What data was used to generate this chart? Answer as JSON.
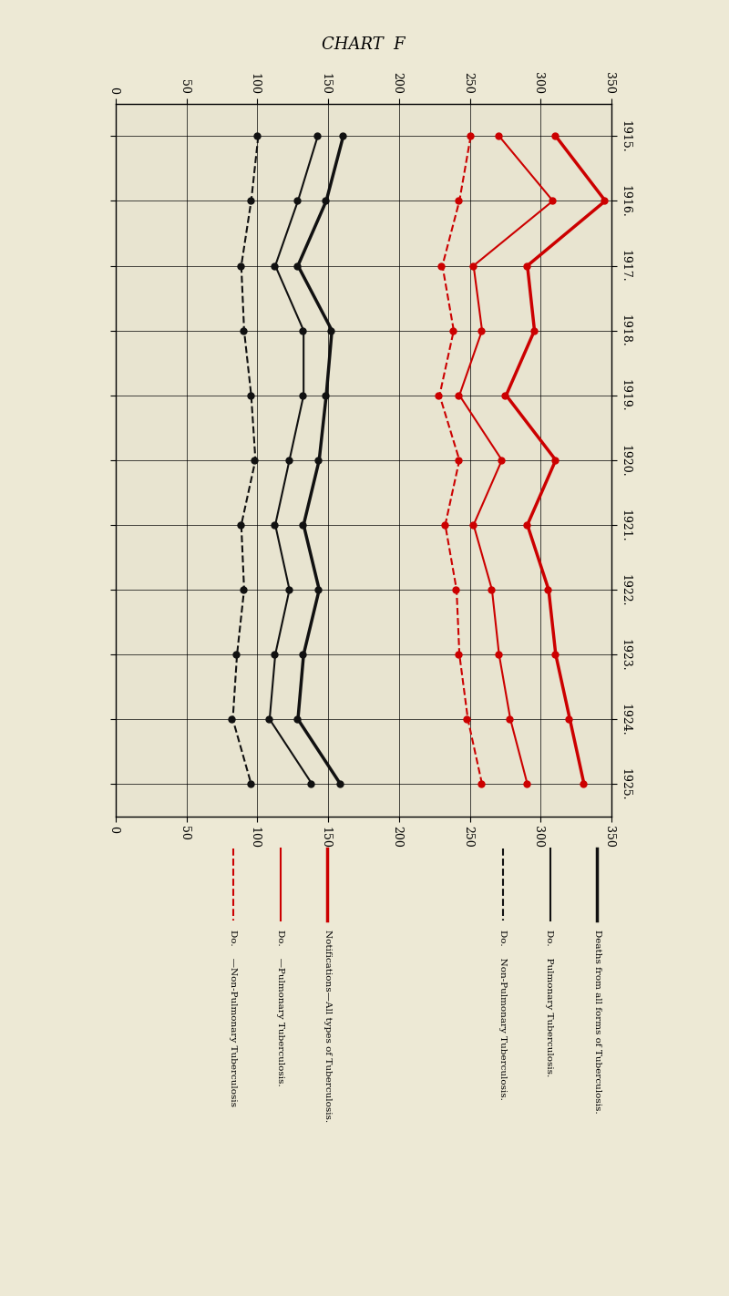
{
  "years": [
    1915,
    1916,
    1917,
    1918,
    1919,
    1920,
    1921,
    1922,
    1923,
    1924,
    1925
  ],
  "notif_all": [
    310,
    345,
    290,
    295,
    275,
    310,
    290,
    305,
    310,
    320,
    330
  ],
  "notif_pulm": [
    270,
    308,
    252,
    258,
    242,
    272,
    252,
    265,
    270,
    278,
    290
  ],
  "notif_nonpulm": [
    250,
    242,
    230,
    238,
    228,
    242,
    232,
    240,
    242,
    248,
    258
  ],
  "death_all": [
    160,
    148,
    128,
    152,
    148,
    143,
    132,
    143,
    132,
    128,
    158
  ],
  "death_pulm": [
    142,
    128,
    112,
    132,
    132,
    122,
    112,
    122,
    112,
    108,
    138
  ],
  "death_nonpulm": [
    100,
    95,
    88,
    90,
    95,
    98,
    88,
    90,
    85,
    82,
    95
  ],
  "bg_color": "#e8e4d0",
  "paper_color": "#ede9d5",
  "red": "#cc0000",
  "black": "#111111",
  "xlim_left": 350,
  "xlim_right": 0,
  "yticks": [
    0,
    50,
    100,
    150,
    200,
    250,
    300,
    350
  ],
  "xticks": [
    1915,
    1916,
    1917,
    1918,
    1919,
    1920,
    1921,
    1922,
    1923,
    1924,
    1925
  ],
  "chart_label": "CHART  F",
  "legend_notif": [
    "Notifications—All types of Tuberculosis.",
    "Do.    —Pulmonary Tuberculosis.",
    "Do.    —Non-Pulmonary Tuberculosis"
  ],
  "legend_death": [
    "Deaths from all forms of Tuberculosis.",
    "Do.    Pulmonary Tuberculosis.",
    "Do.    Non-Pulmonary Tuberculosis."
  ]
}
